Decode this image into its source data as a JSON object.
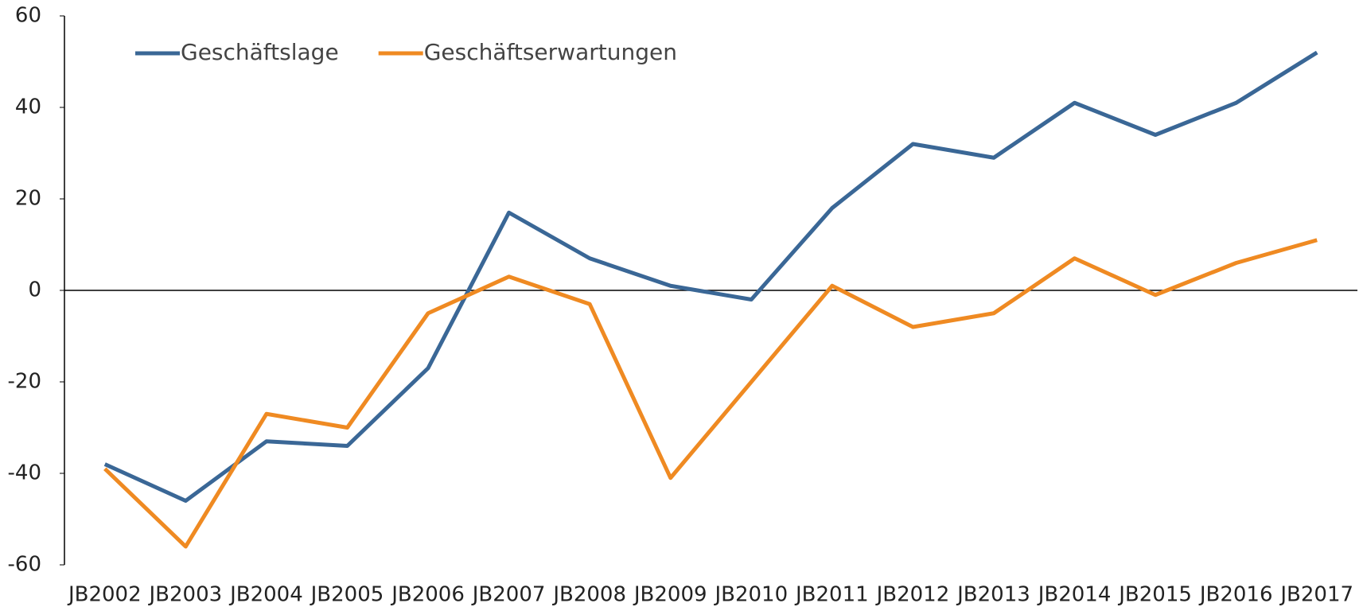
{
  "chart_data": {
    "type": "line",
    "categories": [
      "JB2002",
      "JB2003",
      "JB2004",
      "JB2005",
      "JB2006",
      "JB2007",
      "JB2008",
      "JB2009",
      "JB2010",
      "JB2011",
      "JB2012",
      "JB2013",
      "JB2014",
      "JB2015",
      "JB2016",
      "JB2017"
    ],
    "series": [
      {
        "name": "Geschäftslage",
        "color": "#3a6796",
        "values": [
          -38,
          -46,
          -33,
          -34,
          -17,
          17,
          7,
          1,
          -2,
          18,
          32,
          29,
          41,
          34,
          41,
          52
        ]
      },
      {
        "name": "Geschäftserwartungen",
        "color": "#ef8a22",
        "values": [
          -39,
          -56,
          -27,
          -30,
          -5,
          3,
          -3,
          -41,
          -20,
          1,
          -8,
          -5,
          7,
          -1,
          6,
          11
        ]
      }
    ],
    "ylim": [
      -60,
      60
    ],
    "yticks": [
      -60,
      -40,
      -20,
      0,
      20,
      40,
      60
    ],
    "grid": false,
    "legend": "top-left"
  }
}
